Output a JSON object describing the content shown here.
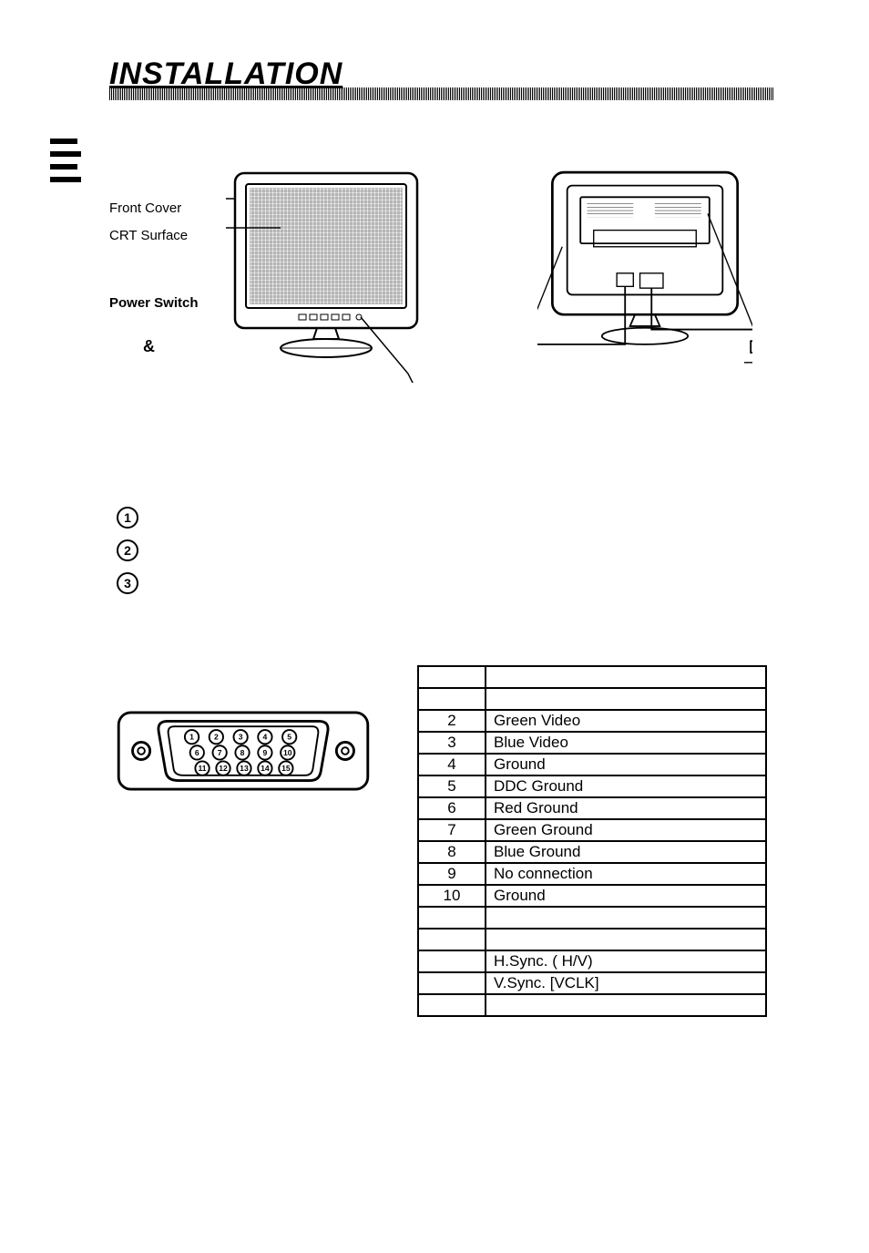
{
  "title": "INSTALLATION",
  "front_labels": {
    "line1": "Front Cover",
    "line2": "CRT Surface",
    "line3": "Power Switch"
  },
  "ampersand": "&",
  "numbered_items": [
    "1",
    "2",
    "3"
  ],
  "connector": {
    "type": "D-sub 15-pin",
    "rows": [
      [
        "1",
        "2",
        "3",
        "4",
        "5"
      ],
      [
        "6",
        "7",
        "8",
        "9",
        "10"
      ],
      [
        "11",
        "12",
        "13",
        "14",
        "15"
      ]
    ]
  },
  "pin_table": {
    "headers": [
      "",
      ""
    ],
    "rows": [
      [
        "",
        ""
      ],
      [
        "",
        ""
      ],
      [
        "2",
        "Green Video"
      ],
      [
        "3",
        "Blue Video"
      ],
      [
        "4",
        "Ground"
      ],
      [
        "5",
        "DDC Ground"
      ],
      [
        "6",
        "Red Ground"
      ],
      [
        "7",
        "Green Ground"
      ],
      [
        "8",
        "Blue Ground"
      ],
      [
        "9",
        "No connection"
      ],
      [
        "10",
        "Ground"
      ],
      [
        "",
        ""
      ],
      [
        "",
        ""
      ],
      [
        "",
        "H.Sync. (     H/V)"
      ],
      [
        "",
        "V.Sync.   [VCLK]"
      ],
      [
        "",
        ""
      ]
    ]
  },
  "colors": {
    "text": "#000000",
    "background": "#ffffff",
    "line": "#000000"
  }
}
